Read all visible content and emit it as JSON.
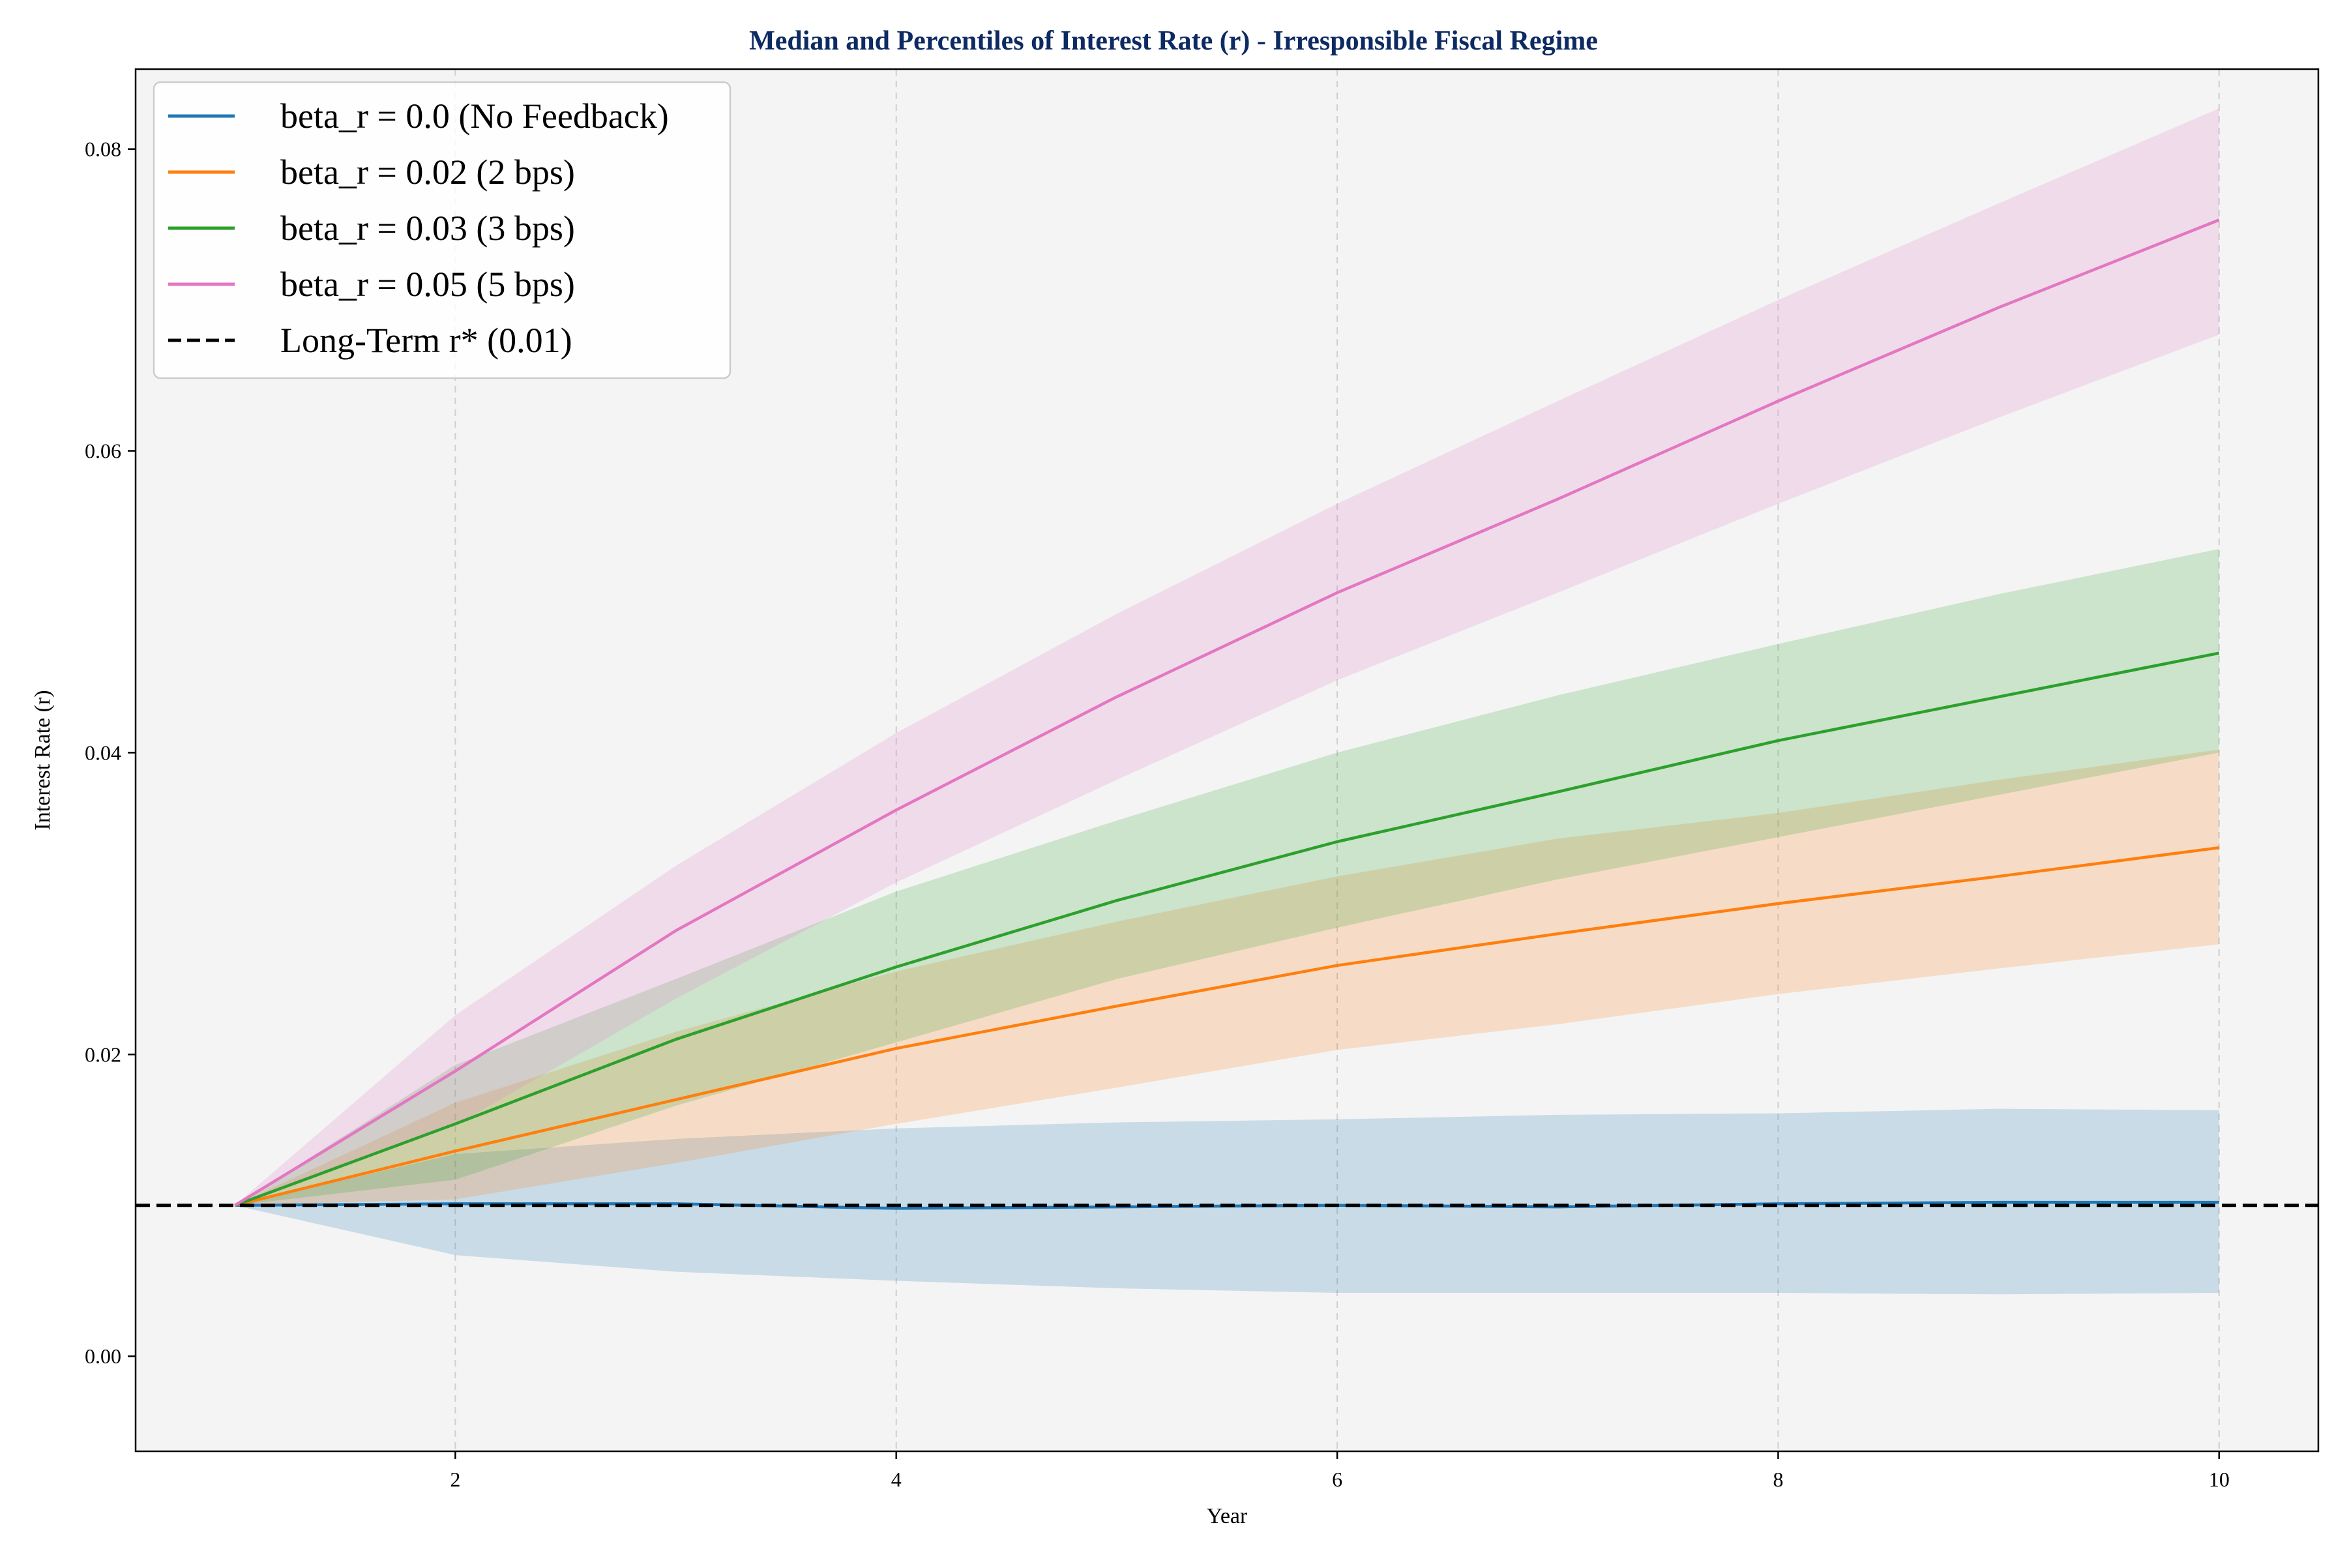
{
  "chart_data": {
    "type": "line",
    "title": "Median and Percentiles of Interest Rate (r) - Irresponsible Fiscal Regime",
    "xlabel": "Year",
    "ylabel": "Interest Rate (r)",
    "xlim": [
      0.55,
      10.45
    ],
    "ylim": [
      -0.0063,
      0.0853
    ],
    "xticks": [
      2,
      4,
      6,
      8,
      10
    ],
    "xtick_labels": [
      "2",
      "4",
      "6",
      "8",
      "10"
    ],
    "yticks": [
      0.0,
      0.02,
      0.04,
      0.06,
      0.08
    ],
    "ytick_labels": [
      "0.00",
      "0.02",
      "0.04",
      "0.06",
      "0.08"
    ],
    "grid": "vertical dashed",
    "legend_position": "upper-left",
    "x": [
      1,
      2,
      3,
      4,
      5,
      6,
      7,
      8,
      9,
      10
    ],
    "series": [
      {
        "name": "beta_r = 0.0 (No Feedback)",
        "color": "#1f77b4",
        "median": [
          0.01,
          0.0101,
          0.0101,
          0.0098,
          0.0099,
          0.01,
          0.0099,
          0.0101,
          0.0102,
          0.0102
        ],
        "lower": [
          0.01,
          0.0067,
          0.0056,
          0.005,
          0.0045,
          0.0042,
          0.0042,
          0.0042,
          0.0041,
          0.0042
        ],
        "upper": [
          0.01,
          0.0134,
          0.0144,
          0.0151,
          0.0155,
          0.0157,
          0.016,
          0.0161,
          0.0164,
          0.0163
        ]
      },
      {
        "name": "beta_r = 0.02 (2 bps)",
        "color": "#ff7f0e",
        "median": [
          0.01,
          0.0136,
          0.017,
          0.0204,
          0.0232,
          0.0259,
          0.028,
          0.03,
          0.0318,
          0.0337
        ],
        "lower": [
          0.01,
          0.0104,
          0.0128,
          0.0154,
          0.0178,
          0.0203,
          0.022,
          0.024,
          0.0257,
          0.0273
        ],
        "upper": [
          0.01,
          0.0168,
          0.0215,
          0.0255,
          0.0288,
          0.0318,
          0.0343,
          0.036,
          0.0382,
          0.0402
        ]
      },
      {
        "name": "beta_r = 0.03 (3 bps)",
        "color": "#2ca02c",
        "median": [
          0.01,
          0.0154,
          0.021,
          0.0258,
          0.0302,
          0.0341,
          0.0374,
          0.0408,
          0.0437,
          0.0466
        ],
        "lower": [
          0.01,
          0.0117,
          0.0166,
          0.0208,
          0.025,
          0.0284,
          0.0316,
          0.0344,
          0.0372,
          0.04
        ],
        "upper": [
          0.01,
          0.0193,
          0.025,
          0.0308,
          0.0355,
          0.04,
          0.0438,
          0.0472,
          0.0505,
          0.0535
        ]
      },
      {
        "name": "beta_r = 0.05 (5 bps)",
        "color": "#e377c2",
        "median": [
          0.01,
          0.0189,
          0.0282,
          0.0362,
          0.0437,
          0.0506,
          0.0568,
          0.0633,
          0.0695,
          0.0753
        ],
        "lower": [
          0.01,
          0.0153,
          0.0237,
          0.0314,
          0.0382,
          0.0448,
          0.0506,
          0.0565,
          0.0622,
          0.0677
        ],
        "upper": [
          0.01,
          0.0226,
          0.0325,
          0.0413,
          0.0492,
          0.0565,
          0.0633,
          0.07,
          0.0764,
          0.0827
        ]
      }
    ],
    "reference_line": {
      "name": "Long-Term r* (0.01)",
      "y": 0.01,
      "color": "#000000",
      "style": "dashed"
    }
  }
}
